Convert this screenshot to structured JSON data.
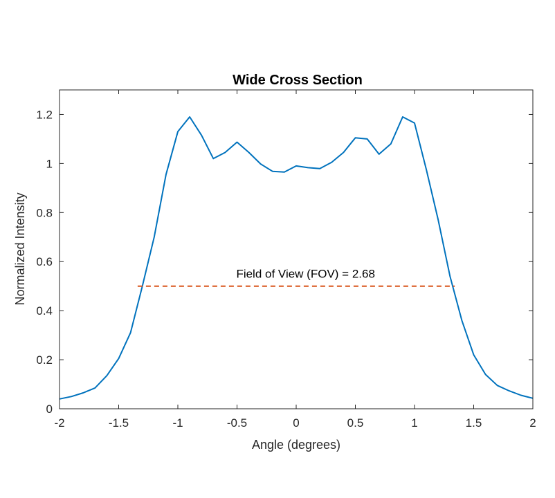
{
  "chart_data": {
    "type": "line",
    "title": "Wide Cross Section",
    "xlabel": "Angle (degrees)",
    "ylabel": "Normalized Intensity",
    "xlim": [
      -2,
      2
    ],
    "ylim": [
      0,
      1.3
    ],
    "xticks": [
      -2,
      -1.5,
      -1,
      -0.5,
      0,
      0.5,
      1,
      1.5,
      2
    ],
    "xtick_labels": [
      "-2",
      "-1.5",
      "-1",
      "-0.5",
      "0",
      "0.5",
      "1",
      "1.5",
      "2"
    ],
    "yticks": [
      0,
      0.2,
      0.4,
      0.6,
      0.8,
      1,
      1.2
    ],
    "ytick_labels": [
      "0",
      "0.2",
      "0.4",
      "0.6",
      "0.8",
      "1",
      "1.2"
    ],
    "grid": false,
    "series": [
      {
        "color": "#0072BD",
        "x": [
          -2.0,
          -1.9,
          -1.8,
          -1.7,
          -1.6,
          -1.5,
          -1.4,
          -1.3,
          -1.2,
          -1.1,
          -1.0,
          -0.9,
          -0.8,
          -0.7,
          -0.6,
          -0.5,
          -0.4,
          -0.3,
          -0.2,
          -0.1,
          0.0,
          0.1,
          0.2,
          0.3,
          0.4,
          0.5,
          0.6,
          0.7,
          0.8,
          0.9,
          1.0,
          1.1,
          1.2,
          1.3,
          1.4,
          1.5,
          1.6,
          1.7,
          1.8,
          1.9,
          2.0
        ],
        "y": [
          0.04,
          0.05,
          0.065,
          0.085,
          0.135,
          0.205,
          0.31,
          0.5,
          0.7,
          0.955,
          1.13,
          1.19,
          1.115,
          1.02,
          1.045,
          1.087,
          1.045,
          0.998,
          0.968,
          0.965,
          0.99,
          0.983,
          0.979,
          1.005,
          1.045,
          1.105,
          1.1,
          1.038,
          1.08,
          1.19,
          1.165,
          0.975,
          0.77,
          0.54,
          0.36,
          0.22,
          0.14,
          0.095,
          0.073,
          0.055,
          0.043
        ]
      },
      {
        "color": "#D95319",
        "style": "dashed",
        "x": [
          -1.34,
          1.34
        ],
        "y": [
          0.5,
          0.5
        ]
      }
    ],
    "annotations": [
      {
        "text": "Field of View (FOV) = 2.68",
        "x": 0.08,
        "y": 0.535
      }
    ]
  }
}
